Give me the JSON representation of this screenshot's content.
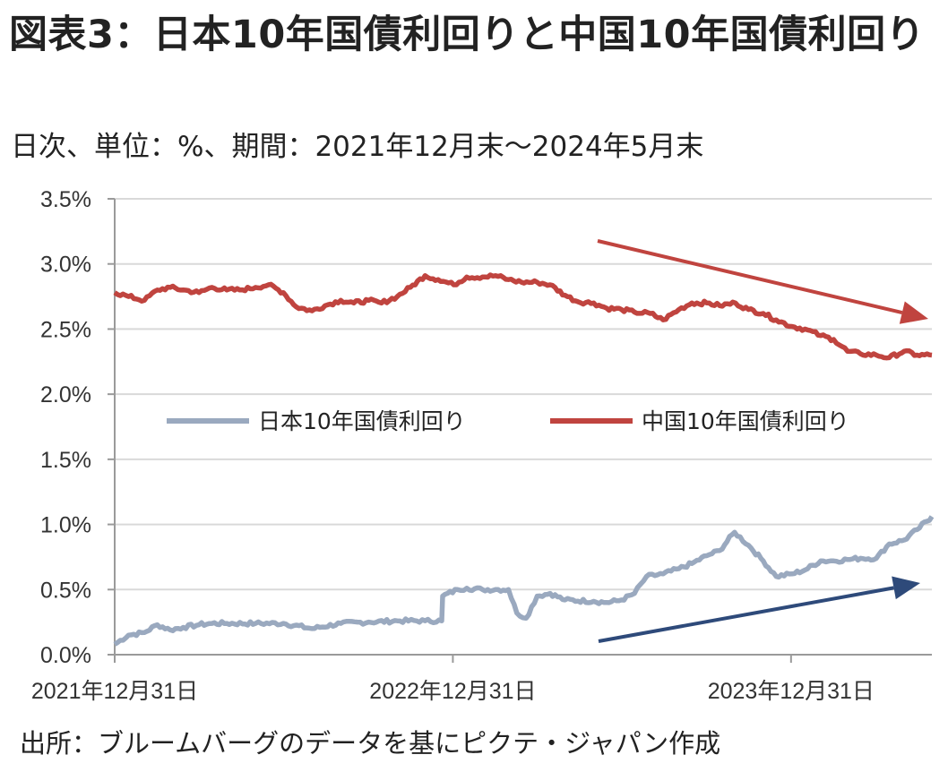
{
  "title": "図表3：日本10年国債利回りと中国10年国債利回り",
  "subtitle": "日次、単位：%、期間：2021年12月末～2024年5月末",
  "source": "出所：ブルームバーグのデータを基にピクテ・ジャパン作成",
  "chart_data": {
    "type": "line",
    "title": "図表3：日本10年国債利回りと中国10年国債利回り",
    "subtitle": "日次、単位：%、期間：2021年12月末～2024年5月末",
    "xlabel": "",
    "ylabel": "",
    "x_range": [
      "2021-12-31",
      "2024-05-31"
    ],
    "ylim": [
      0,
      3.5
    ],
    "y_ticks": [
      0,
      0.5,
      1.0,
      1.5,
      2.0,
      2.5,
      3.0,
      3.5
    ],
    "y_tick_labels": [
      "0.0%",
      "0.5%",
      "1.0%",
      "1.5%",
      "2.0%",
      "2.5%",
      "3.0%",
      "3.5%"
    ],
    "x_ticks": [
      "2021-12-31",
      "2022-12-31",
      "2023-12-31"
    ],
    "x_tick_labels": [
      "2021年12月31日",
      "2022年12月31日",
      "2023年12月31日"
    ],
    "grid": "horizontal",
    "legend_position": "center",
    "series": [
      {
        "name": "日本10年国債利回り",
        "color": "#9aa9bf",
        "x": [
          "2021-12-31",
          "2022-01-15",
          "2022-02-01",
          "2022-02-15",
          "2022-03-01",
          "2022-03-15",
          "2022-04-01",
          "2022-04-15",
          "2022-05-01",
          "2022-06-01",
          "2022-07-01",
          "2022-08-01",
          "2022-09-01",
          "2022-10-01",
          "2022-11-01",
          "2022-12-01",
          "2022-12-19",
          "2022-12-20",
          "2023-01-05",
          "2023-01-15",
          "2023-02-01",
          "2023-02-15",
          "2023-03-01",
          "2023-03-10",
          "2023-03-20",
          "2023-04-01",
          "2023-04-15",
          "2023-05-01",
          "2023-06-01",
          "2023-06-15",
          "2023-07-01",
          "2023-07-15",
          "2023-07-28",
          "2023-08-15",
          "2023-09-01",
          "2023-09-15",
          "2023-10-01",
          "2023-10-15",
          "2023-10-31",
          "2023-11-15",
          "2023-12-01",
          "2023-12-15",
          "2024-01-01",
          "2024-01-15",
          "2024-02-01",
          "2024-02-15",
          "2024-03-01",
          "2024-03-15",
          "2024-04-01",
          "2024-04-15",
          "2024-05-01",
          "2024-05-15",
          "2024-05-31"
        ],
        "values": [
          0.08,
          0.15,
          0.17,
          0.23,
          0.19,
          0.21,
          0.23,
          0.24,
          0.24,
          0.24,
          0.24,
          0.2,
          0.24,
          0.25,
          0.26,
          0.26,
          0.26,
          0.45,
          0.5,
          0.51,
          0.5,
          0.5,
          0.5,
          0.32,
          0.28,
          0.45,
          0.47,
          0.42,
          0.41,
          0.4,
          0.42,
          0.47,
          0.6,
          0.62,
          0.66,
          0.7,
          0.76,
          0.8,
          0.94,
          0.84,
          0.72,
          0.6,
          0.62,
          0.65,
          0.72,
          0.72,
          0.73,
          0.74,
          0.74,
          0.85,
          0.88,
          0.96,
          1.06
        ]
      },
      {
        "name": "中国10年国債利回り",
        "color": "#c0443f",
        "x": [
          "2021-12-31",
          "2022-01-15",
          "2022-02-01",
          "2022-02-15",
          "2022-03-01",
          "2022-03-15",
          "2022-04-01",
          "2022-04-15",
          "2022-05-01",
          "2022-05-15",
          "2022-06-01",
          "2022-06-15",
          "2022-07-01",
          "2022-07-15",
          "2022-08-01",
          "2022-08-15",
          "2022-09-01",
          "2022-09-15",
          "2022-10-01",
          "2022-10-15",
          "2022-11-01",
          "2022-11-15",
          "2022-12-01",
          "2022-12-15",
          "2023-01-01",
          "2023-01-15",
          "2023-02-01",
          "2023-02-15",
          "2023-03-01",
          "2023-03-15",
          "2023-04-01",
          "2023-04-15",
          "2023-05-01",
          "2023-05-15",
          "2023-06-01",
          "2023-06-15",
          "2023-07-01",
          "2023-07-15",
          "2023-08-01",
          "2023-08-15",
          "2023-09-01",
          "2023-09-15",
          "2023-10-01",
          "2023-10-15",
          "2023-11-01",
          "2023-11-15",
          "2023-12-01",
          "2023-12-15",
          "2024-01-01",
          "2024-01-15",
          "2024-02-01",
          "2024-02-15",
          "2024-03-01",
          "2024-03-15",
          "2024-04-01",
          "2024-04-15",
          "2024-05-01",
          "2024-05-15",
          "2024-05-31"
        ],
        "values": [
          2.78,
          2.75,
          2.72,
          2.8,
          2.82,
          2.8,
          2.78,
          2.82,
          2.8,
          2.8,
          2.82,
          2.84,
          2.78,
          2.67,
          2.64,
          2.68,
          2.72,
          2.7,
          2.72,
          2.7,
          2.75,
          2.82,
          2.91,
          2.88,
          2.84,
          2.9,
          2.9,
          2.91,
          2.88,
          2.86,
          2.86,
          2.84,
          2.76,
          2.71,
          2.7,
          2.66,
          2.65,
          2.63,
          2.62,
          2.57,
          2.65,
          2.7,
          2.7,
          2.68,
          2.7,
          2.65,
          2.62,
          2.57,
          2.52,
          2.5,
          2.45,
          2.42,
          2.33,
          2.31,
          2.3,
          2.28,
          2.33,
          2.3,
          2.3
        ]
      }
    ],
    "annotations": [
      {
        "type": "trend-arrow",
        "color": "#c0443f",
        "direction": "down"
      },
      {
        "type": "trend-arrow",
        "color": "#2e4a7a",
        "direction": "up"
      }
    ]
  }
}
